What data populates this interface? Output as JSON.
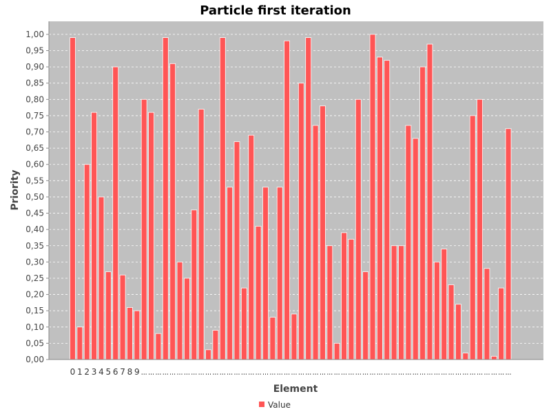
{
  "chart_data": {
    "type": "bar",
    "title": "Particle first iteration",
    "xlabel": "Element",
    "ylabel": "Priority",
    "ylim": [
      0,
      1.04
    ],
    "y_ticks": [
      "0,00",
      "0,05",
      "0,10",
      "0,15",
      "0,20",
      "0,25",
      "0,30",
      "0,35",
      "0,40",
      "0,45",
      "0,50",
      "0,55",
      "0,60",
      "0,65",
      "0,70",
      "0,75",
      "0,80",
      "0,85",
      "0,90",
      "0,95",
      "1,00"
    ],
    "x_tick_labels": [
      "0",
      "1",
      "2",
      "3",
      "4",
      "5",
      "6",
      "7",
      "8",
      "9",
      "...",
      "...",
      "...",
      "...",
      "...",
      "...",
      "...",
      "...",
      "...",
      "...",
      "...",
      "...",
      "...",
      "...",
      "...",
      "...",
      "...",
      "...",
      "...",
      "...",
      "...",
      "...",
      "...",
      "...",
      "...",
      "...",
      "...",
      "...",
      "...",
      "...",
      "...",
      "...",
      "...",
      "...",
      "...",
      "...",
      "...",
      "...",
      "...",
      "...",
      "...",
      "...",
      "...",
      "...",
      "...",
      "...",
      "...",
      "...",
      "...",
      "...",
      "...",
      "..."
    ],
    "grid": true,
    "legend": "bottom",
    "colors": {
      "plot_bg": "#c0c0c0",
      "bar": "#ff5555",
      "grid": "#ffffff"
    },
    "series": [
      {
        "name": "Value",
        "values": [
          0.99,
          0.1,
          0.6,
          0.76,
          0.5,
          0.27,
          0.9,
          0.26,
          0.16,
          0.15,
          0.8,
          0.76,
          0.08,
          0.99,
          0.91,
          0.3,
          0.25,
          0.46,
          0.77,
          0.03,
          0.09,
          0.99,
          0.53,
          0.67,
          0.22,
          0.69,
          0.41,
          0.53,
          0.13,
          0.53,
          0.98,
          0.14,
          0.85,
          0.99,
          0.72,
          0.78,
          0.35,
          0.05,
          0.39,
          0.37,
          0.8,
          0.27,
          1.0,
          0.93,
          0.92,
          0.35,
          0.35,
          0.72,
          0.68,
          0.9,
          0.97,
          0.3,
          0.34,
          0.23,
          0.17,
          0.02,
          0.75,
          0.8,
          0.28,
          0.01,
          0.22,
          0.71
        ]
      }
    ]
  }
}
